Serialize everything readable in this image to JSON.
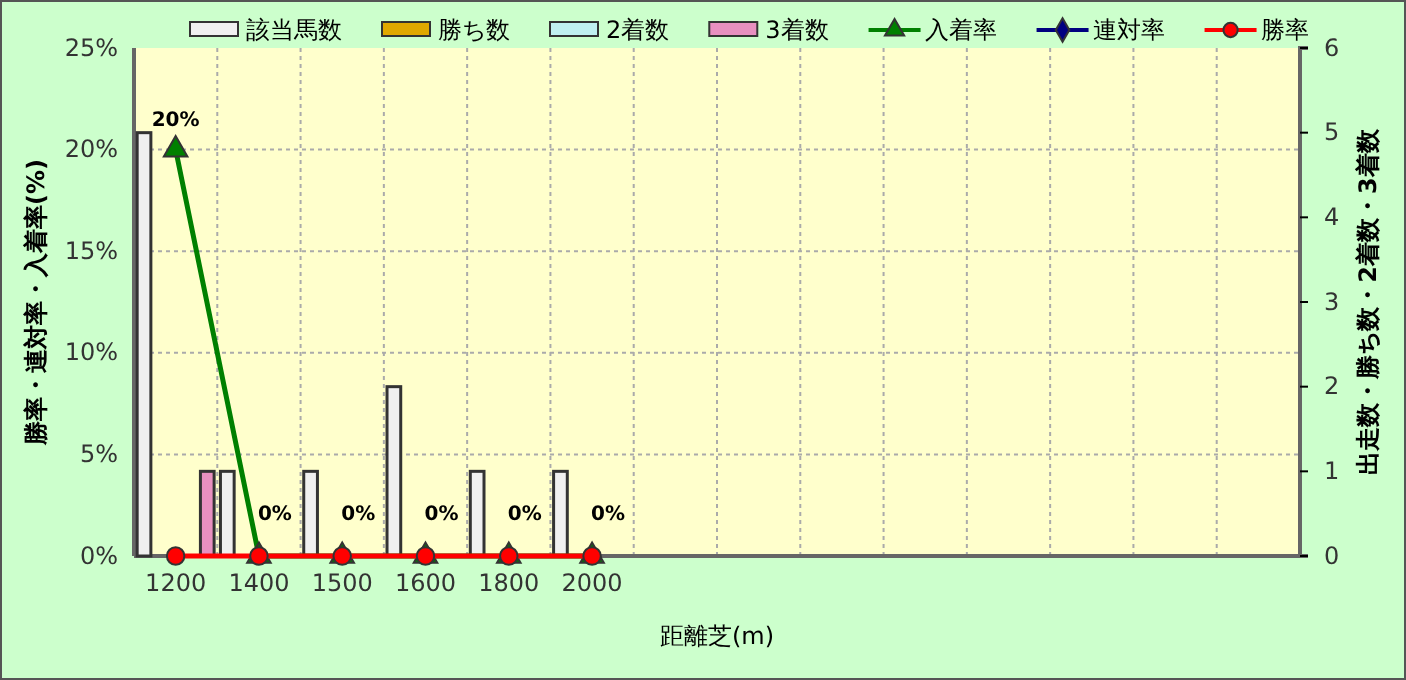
{
  "chart_data": {
    "type": "bar",
    "xlabel": "距離芝(m)",
    "ylabel": "勝率・連対率・入着率(%)",
    "y2label": "出走数・勝ち数・2着数・3着数",
    "categories": [
      "1200",
      "1400",
      "1500",
      "1600",
      "1800",
      "2000",
      null,
      null,
      null,
      null,
      null,
      null,
      null,
      null
    ],
    "series": [
      {
        "name": "該当馬数",
        "axis": "y2",
        "color": "#f0f0f0",
        "values": [
          5,
          1,
          1,
          2,
          1,
          1,
          null,
          null,
          null,
          null,
          null,
          null,
          null,
          null
        ]
      },
      {
        "name": "勝ち数",
        "axis": "y2",
        "color": "#e0a800",
        "values": [
          0,
          0,
          0,
          0,
          0,
          0,
          null,
          null,
          null,
          null,
          null,
          null,
          null,
          null
        ]
      },
      {
        "name": "2着数",
        "axis": "y2",
        "color": "#c0f0f0",
        "values": [
          0,
          0,
          0,
          0,
          0,
          0,
          null,
          null,
          null,
          null,
          null,
          null,
          null,
          null
        ]
      },
      {
        "name": "3着数",
        "axis": "y2",
        "color": "#e890c0",
        "values": [
          1,
          0,
          0,
          0,
          0,
          0,
          null,
          null,
          null,
          null,
          null,
          null,
          null,
          null
        ]
      },
      {
        "name": "入着率",
        "type": "line",
        "color": "#008000",
        "marker": "triangle",
        "values": [
          20,
          0,
          0,
          0,
          0,
          0,
          null,
          null,
          null,
          null,
          null,
          null,
          null,
          null
        ],
        "value_labels": [
          "20%",
          "0%",
          "0%",
          "0%",
          "0%",
          "0%",
          null,
          null,
          null,
          null,
          null,
          null,
          null,
          null
        ]
      },
      {
        "name": "連対率",
        "type": "line",
        "color": "#000080",
        "marker": "diamond",
        "values": [
          null,
          null,
          null,
          null,
          null,
          null,
          null,
          null,
          null,
          null,
          null,
          null,
          null,
          null
        ]
      },
      {
        "name": "勝率",
        "type": "line",
        "color": "#ff0000",
        "marker": "circle",
        "values": [
          0,
          0,
          0,
          0,
          0,
          0,
          null,
          null,
          null,
          null,
          null,
          null,
          null,
          null
        ]
      }
    ],
    "ylim": [
      0,
      25
    ],
    "yticks": [
      {
        "value": 0,
        "label": "0%"
      },
      {
        "value": 5,
        "label": "5%"
      },
      {
        "value": 10,
        "label": "10%"
      },
      {
        "value": 15,
        "label": "15%"
      },
      {
        "value": 20,
        "label": "20%"
      },
      {
        "value": 25,
        "label": "25%"
      }
    ],
    "y2lim": [
      0,
      6
    ],
    "y2ticks": [
      0,
      1,
      2,
      3,
      4,
      5,
      6
    ],
    "grid": true,
    "legend": "top"
  }
}
